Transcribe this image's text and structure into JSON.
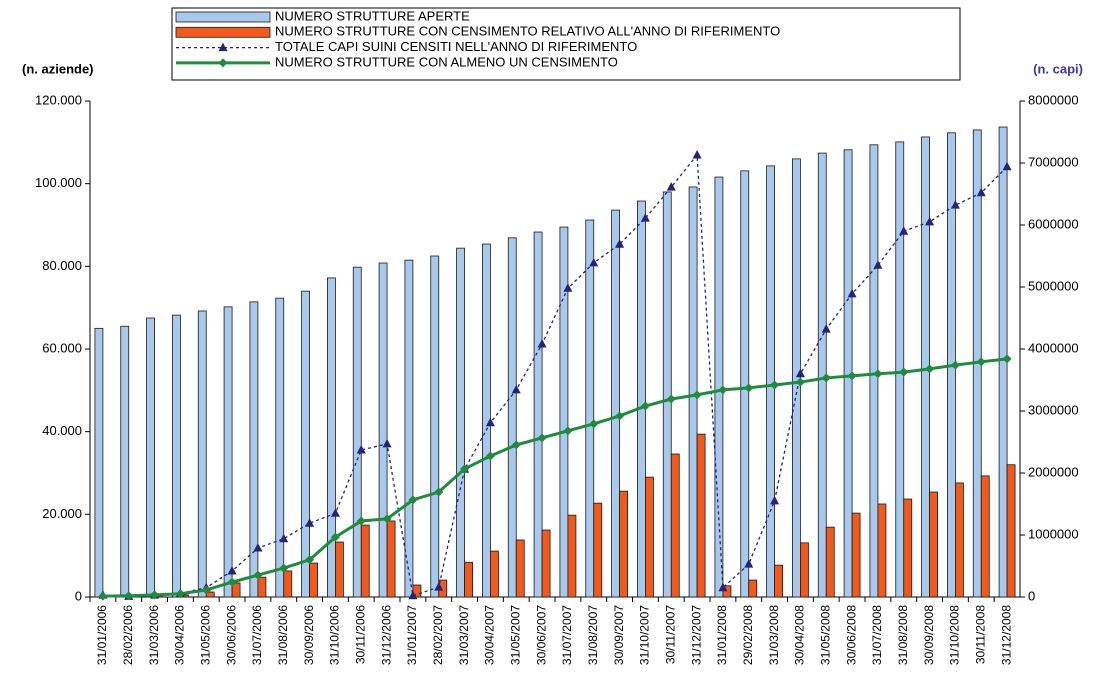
{
  "chart_data": {
    "type": "combo",
    "y_label": "(n. aziende)",
    "y2_label": "(n. capi)",
    "categories": [
      "31/01/2006",
      "28/02/2006",
      "31/03/2006",
      "30/04/2006",
      "31/05/2006",
      "30/06/2006",
      "31/07/2006",
      "31/08/2006",
      "30/09/2006",
      "31/10/2006",
      "30/11/2006",
      "31/12/2006",
      "31/01/2007",
      "28/02/2007",
      "31/03/2007",
      "30/04/2007",
      "31/05/2007",
      "30/06/2007",
      "31/07/2007",
      "31/08/2007",
      "30/09/2007",
      "31/10/2007",
      "30/11/2007",
      "31/12/2007",
      "31/01/2008",
      "29/02/2008",
      "31/03/2008",
      "30/04/2008",
      "31/05/2008",
      "30/06/2008",
      "31/07/2008",
      "31/08/2008",
      "30/09/2008",
      "31/10/2008",
      "30/11/2008",
      "31/12/2008"
    ],
    "series": [
      {
        "name": "NUMERO STRUTTURE APERTE",
        "type": "bar",
        "color": "#a9c9ec",
        "values": [
          65000,
          65500,
          67500,
          68200,
          69200,
          70200,
          71400,
          72300,
          74000,
          77200,
          79800,
          80800,
          81500,
          82500,
          84400,
          85400,
          86900,
          88300,
          89500,
          91200,
          93600,
          95800,
          98000,
          99200,
          101600,
          103100,
          104300,
          106000,
          107400,
          108200,
          109400,
          110100,
          111300,
          112300,
          113000,
          113700
        ]
      },
      {
        "name": "NUMERO STRUTTURE CON CENSIMENTO RELATIVO ALL'ANNO DI RIFERIMENTO",
        "type": "bar",
        "color": "#f15a1c",
        "values": [
          200,
          200,
          300,
          500,
          1200,
          3400,
          4800,
          6300,
          8200,
          13300,
          17400,
          18400,
          2900,
          4100,
          8400,
          11100,
          13800,
          16200,
          19800,
          22700,
          25600,
          29000,
          34600,
          39400,
          2700,
          4100,
          7700,
          13100,
          16900,
          20300,
          22500,
          23700,
          25400,
          27600,
          29300,
          32000
        ]
      },
      {
        "name": "TOTALE CAPI SUINI CENSITI NELL'ANNO DI RIFERIMENTO",
        "type": "line",
        "axis": "y2",
        "dashed": true,
        "marker": "triangle",
        "color": "#24247e",
        "values": [
          30000,
          10000,
          30000,
          60000,
          150000,
          420000,
          790000,
          940000,
          1190000,
          1350000,
          2370000,
          2470000,
          20000,
          160000,
          2060000,
          2810000,
          3340000,
          4080000,
          4980000,
          5390000,
          5690000,
          6110000,
          6610000,
          7130000,
          150000,
          530000,
          1550000,
          3600000,
          4320000,
          4890000,
          5350000,
          5900000,
          6050000,
          6320000,
          6520000,
          6940000
        ]
      },
      {
        "name": "NUMERO STRUTTURE CON ALMENO UN CENSIMENTO",
        "type": "line",
        "marker": "diamond",
        "color": "#1e8c3c",
        "values": [
          200,
          300,
          500,
          800,
          1700,
          3600,
          5300,
          7000,
          9000,
          14500,
          18400,
          18900,
          23500,
          25400,
          31000,
          34100,
          36800,
          38500,
          40200,
          41900,
          43800,
          46200,
          47900,
          48900,
          50100,
          50600,
          51300,
          52000,
          53000,
          53500,
          54000,
          54400,
          55200,
          56100,
          56900,
          57600
        ]
      }
    ],
    "ylim": [
      0,
      120000
    ],
    "yticks": [
      0,
      {
        "value": 20000,
        "label": "20.000"
      },
      {
        "value": 40000,
        "label": "40.000"
      },
      {
        "value": 60000,
        "label": "60.000"
      },
      {
        "value": 80000,
        "label": "80.000"
      },
      {
        "value": 100000,
        "label": "100.000"
      },
      {
        "value": 120000,
        "label": "120.000"
      }
    ],
    "y2lim": [
      0,
      8000000
    ],
    "y2ticks": [
      0,
      1000000,
      2000000,
      3000000,
      4000000,
      5000000,
      6000000,
      7000000,
      8000000
    ],
    "grid": false
  }
}
